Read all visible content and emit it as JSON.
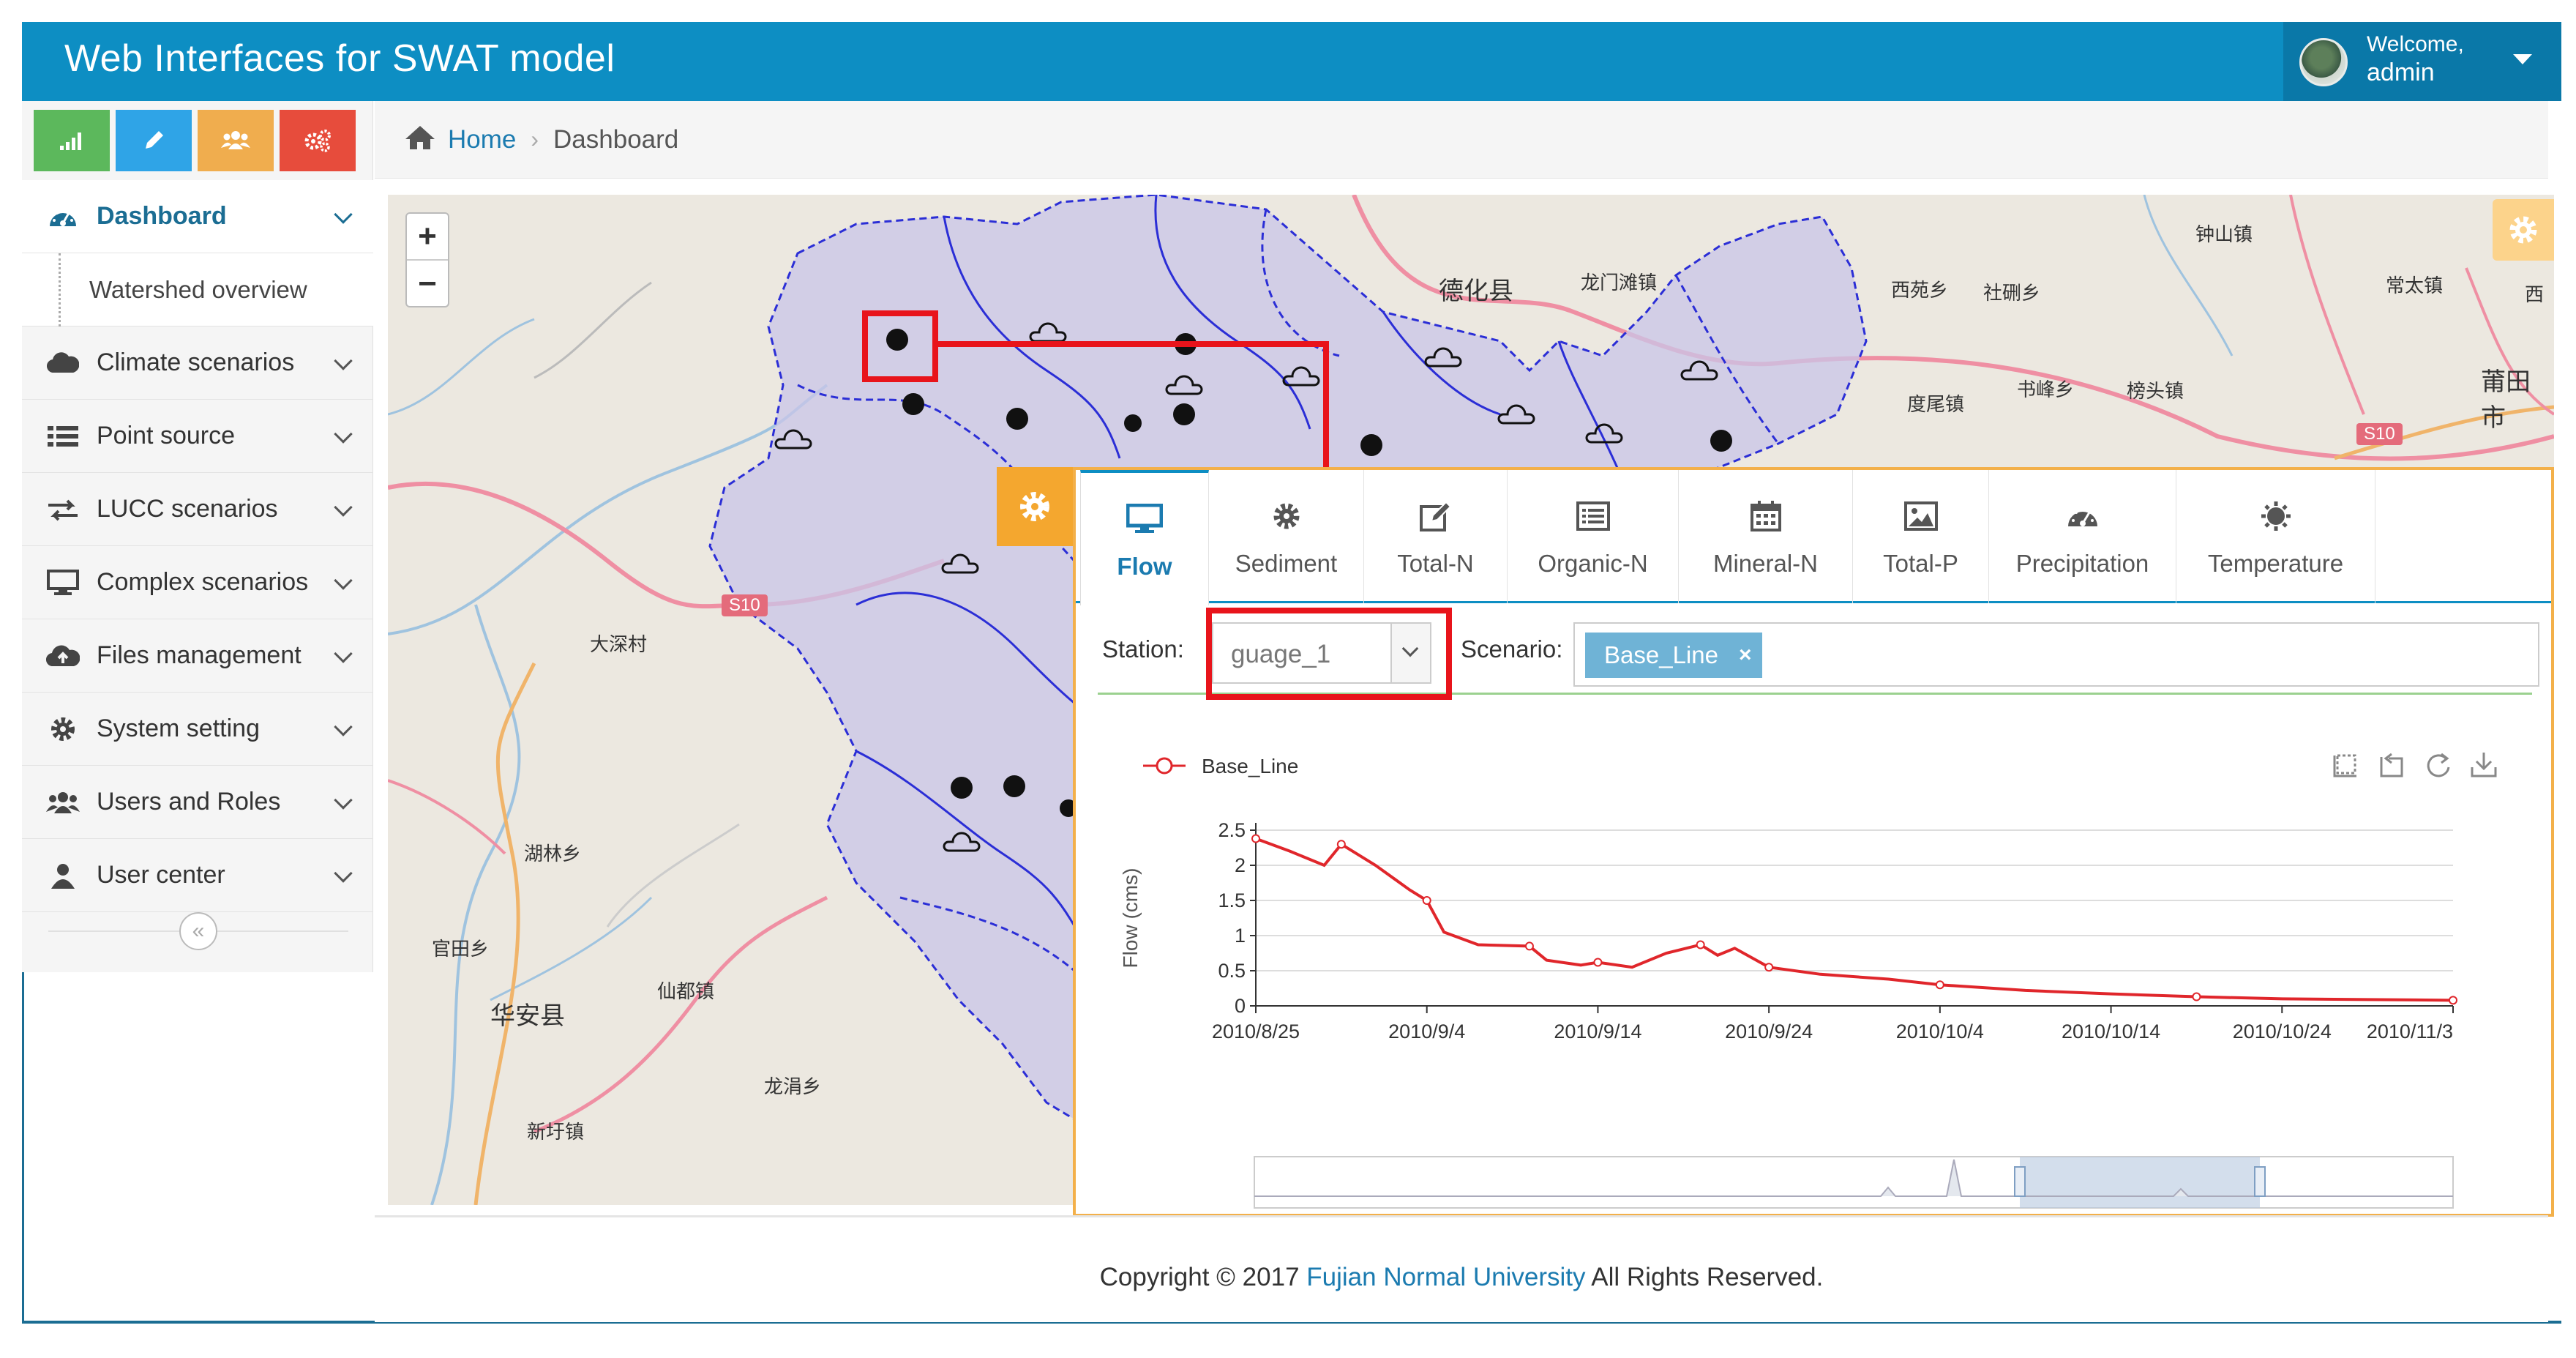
{
  "app": {
    "title": "Web Interfaces for SWAT model"
  },
  "user": {
    "welcome": "Welcome,",
    "name": "admin"
  },
  "shortcuts": [
    {
      "icon": "signal-icon",
      "color": "#5cb85c"
    },
    {
      "icon": "pencil-icon",
      "color": "#2fa4e7"
    },
    {
      "icon": "users-icon",
      "color": "#f0ad4e"
    },
    {
      "icon": "cogs-icon",
      "color": "#e74c3c"
    }
  ],
  "sidebar": {
    "items": [
      {
        "label": "Dashboard",
        "icon": "dashboard-icon"
      },
      {
        "label": "Watershed overview"
      },
      {
        "label": "Climate scenarios",
        "icon": "cloud-icon"
      },
      {
        "label": "Point source",
        "icon": "list-icon"
      },
      {
        "label": "LUCC scenarios",
        "icon": "exchange-icon"
      },
      {
        "label": "Complex scenarios",
        "icon": "desktop-icon"
      },
      {
        "label": "Files management",
        "icon": "cloud-upload-icon"
      },
      {
        "label": "System setting",
        "icon": "gear-icon"
      },
      {
        "label": "Users and Roles",
        "icon": "users-icon"
      },
      {
        "label": "User center",
        "icon": "user-icon"
      }
    ],
    "collapse_glyph": "«"
  },
  "breadcrumb": {
    "home": "Home",
    "separator": "›",
    "current": "Dashboard"
  },
  "map": {
    "zoom_in": "+",
    "zoom_out": "−",
    "labels": [
      "德化县",
      "龙门滩镇",
      "西苑乡",
      "社硎乡",
      "钟山镇",
      "常太镇",
      "度尾镇",
      "书峰乡",
      "榜头镇",
      "莆田市",
      "大深村",
      "湖林乡",
      "官田乡",
      "华安县",
      "仙都镇",
      "龙涓乡",
      "新圩镇",
      "西"
    ],
    "road_badges": [
      "S10",
      "S10"
    ]
  },
  "panel": {
    "tabs": [
      {
        "label": "Flow",
        "icon": "desktop-icon"
      },
      {
        "label": "Sediment",
        "icon": "gear-icon"
      },
      {
        "label": "Total-N",
        "icon": "edit-icon"
      },
      {
        "label": "Organic-N",
        "icon": "list-alt-icon"
      },
      {
        "label": "Mineral-N",
        "icon": "calendar-icon"
      },
      {
        "label": "Total-P",
        "icon": "picture-icon"
      },
      {
        "label": "Precipitation",
        "icon": "dashboard-icon"
      },
      {
        "label": "Temperature",
        "icon": "sun-icon"
      }
    ],
    "active_tab": "Flow",
    "station_label": "Station:",
    "station_value": "guage_1",
    "scenario_label": "Scenario:",
    "scenario_tag": "Base_Line",
    "scenario_tag_remove": "×"
  },
  "chart_data": {
    "type": "line",
    "ylabel": "Flow (cms)",
    "xlabel": "",
    "ylim": [
      0,
      2.5
    ],
    "yticks": [
      "0",
      "0.5",
      "1",
      "1.5",
      "2",
      "2.5"
    ],
    "xtick_labels": [
      "2010/8/25",
      "2010/9/4",
      "2010/9/14",
      "2010/9/24",
      "2010/10/4",
      "2010/10/14",
      "2010/10/24",
      "2010/11/3"
    ],
    "legend": "top-left",
    "grid": true,
    "series": [
      {
        "name": "Base_Line",
        "color": "#e0262b",
        "x": [
          "2010/8/25",
          "2010/8/27",
          "2010/8/29",
          "2010/8/30",
          "2010/9/1",
          "2010/9/3",
          "2010/9/4",
          "2010/9/5",
          "2010/9/7",
          "2010/9/10",
          "2010/9/11",
          "2010/9/13",
          "2010/9/14",
          "2010/9/16",
          "2010/9/18",
          "2010/9/20",
          "2010/9/21",
          "2010/9/22",
          "2010/9/24",
          "2010/9/27",
          "2010/10/1",
          "2010/10/4",
          "2010/10/9",
          "2010/10/14",
          "2010/10/19",
          "2010/10/24",
          "2010/10/29",
          "2010/11/3"
        ],
        "y": [
          2.38,
          2.2,
          2.0,
          2.3,
          2.0,
          1.65,
          1.5,
          1.05,
          0.87,
          0.85,
          0.65,
          0.58,
          0.62,
          0.55,
          0.75,
          0.87,
          0.72,
          0.82,
          0.55,
          0.45,
          0.38,
          0.3,
          0.22,
          0.17,
          0.13,
          0.1,
          0.09,
          0.08
        ]
      }
    ],
    "toolbox": [
      "zoom-icon",
      "zoom-reset-icon",
      "restore-icon",
      "save-image-icon"
    ]
  },
  "footer": {
    "prefix": "Copyright © 2017 ",
    "org": "Fujian Normal University",
    "suffix": " All Rights Reserved."
  },
  "colors": {
    "navbar": "#0d8ec3",
    "accent": "#1b7bb0",
    "panel_border": "#f3b04a",
    "annotation": "#e8141b",
    "series": "#e0262b"
  }
}
